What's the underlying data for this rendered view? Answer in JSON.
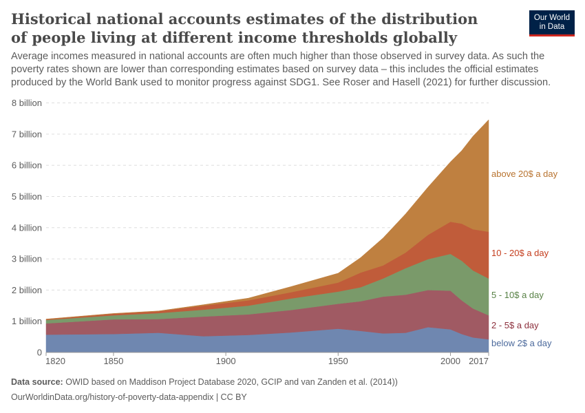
{
  "header": {
    "title": "Historical national accounts estimates of the distribution of people living at different income thresholds globally",
    "subtitle": "Average incomes measured in national accounts are often much higher than those observed in survey data. As such the poverty rates shown are lower than corresponding estimates based on survey data – this includes the official estimates produced by the World Bank used to monitor progress against SDG1. See Roser and Hasell (2021) for further discussion.",
    "logo_line1": "Our World",
    "logo_line2": "in Data"
  },
  "footer": {
    "source_label": "Data source:",
    "source_text": "OWID based on Maddison Project Database 2020, GCIP and van Zanden et al. (2014))",
    "url": "OurWorldinData.org/history-of-poverty-data-appendix | CC BY"
  },
  "chart_data": {
    "type": "area",
    "stacked": true,
    "title": "Historical national accounts estimates of the distribution of people living at different income thresholds globally",
    "xlabel": "",
    "ylabel": "",
    "ylim": [
      0,
      8000000000
    ],
    "grid": "horizontal dashed",
    "legend": "right, inline labels",
    "y_ticks": [
      {
        "value": 0,
        "label": "0"
      },
      {
        "value": 1000000000,
        "label": "1 billion"
      },
      {
        "value": 2000000000,
        "label": "2 billion"
      },
      {
        "value": 3000000000,
        "label": "3 billion"
      },
      {
        "value": 4000000000,
        "label": "4 billion"
      },
      {
        "value": 5000000000,
        "label": "5 billion"
      },
      {
        "value": 6000000000,
        "label": "6 billion"
      },
      {
        "value": 7000000000,
        "label": "7 billion"
      },
      {
        "value": 8000000000,
        "label": "8 billion"
      }
    ],
    "x_ticks": [
      1820,
      1850,
      1900,
      1950,
      2000,
      2017
    ],
    "x": [
      1820,
      1850,
      1870,
      1890,
      1910,
      1929,
      1950,
      1960,
      1970,
      1980,
      1990,
      2000,
      2005,
      2010,
      2017
    ],
    "series": [
      {
        "name": "below 2$ a day",
        "color": "#6f87b0",
        "label_color": "#4c6a9c",
        "values": [
          570000000,
          590000000,
          630000000,
          520000000,
          560000000,
          640000000,
          760000000,
          690000000,
          610000000,
          630000000,
          810000000,
          740000000,
          590000000,
          480000000,
          420000000
        ]
      },
      {
        "name": "2 - 5$ a day",
        "color": "#a05a63",
        "label_color": "#8c2f3c",
        "values": [
          360000000,
          470000000,
          440000000,
          630000000,
          660000000,
          720000000,
          800000000,
          950000000,
          1180000000,
          1220000000,
          1190000000,
          1240000000,
          1080000000,
          930000000,
          770000000
        ]
      },
      {
        "name": "5 - 10$ a day",
        "color": "#7a9a6a",
        "label_color": "#578145",
        "values": [
          110000000,
          130000000,
          190000000,
          220000000,
          280000000,
          370000000,
          390000000,
          450000000,
          580000000,
          850000000,
          990000000,
          1180000000,
          1270000000,
          1220000000,
          1180000000
        ]
      },
      {
        "name": "10 - 20$ a day",
        "color": "#c05c3a",
        "label_color": "#c43c1c",
        "values": [
          20000000,
          50000000,
          60000000,
          130000000,
          170000000,
          200000000,
          290000000,
          470000000,
          420000000,
          500000000,
          780000000,
          1030000000,
          1190000000,
          1320000000,
          1500000000
        ]
      },
      {
        "name": "above 20$ a day",
        "color": "#bf8040",
        "label_color": "#b8732f",
        "values": [
          10000000,
          10000000,
          10000000,
          30000000,
          70000000,
          180000000,
          300000000,
          480000000,
          880000000,
          1240000000,
          1530000000,
          1920000000,
          2340000000,
          2980000000,
          3590000000
        ]
      }
    ]
  }
}
